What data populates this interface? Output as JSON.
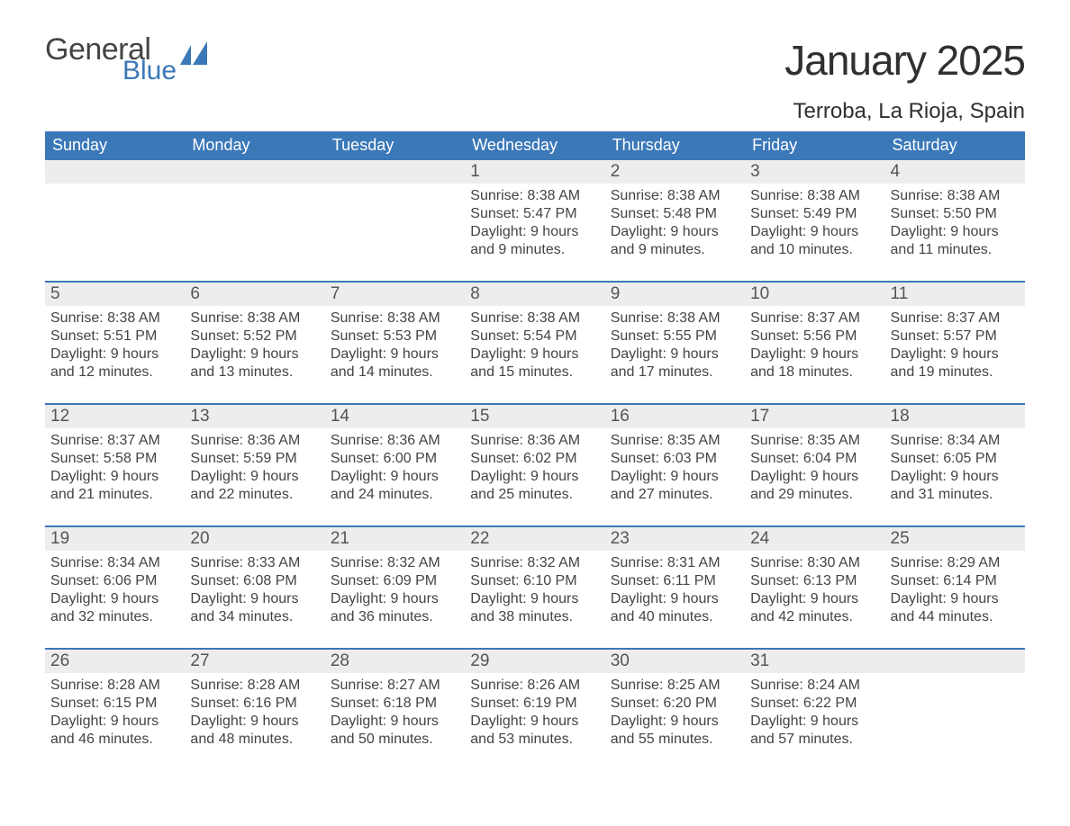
{
  "logo": {
    "word1": "General",
    "word2": "Blue"
  },
  "title": "January 2025",
  "location": "Terroba, La Rioja, Spain",
  "colors": {
    "header_bg": "#3b78b8",
    "header_text": "#ffffff",
    "daynum_bg": "#ededed",
    "accent_line": "#3b78b8",
    "text": "#444444",
    "title_text": "#303030"
  },
  "layout": {
    "columns": 7,
    "rows": 5,
    "start_weekday_index": 3,
    "fontsize_body": 16,
    "fontsize_daynum": 19,
    "fontsize_weekday": 18,
    "fontsize_title": 46,
    "fontsize_location": 24
  },
  "weekdays": [
    "Sunday",
    "Monday",
    "Tuesday",
    "Wednesday",
    "Thursday",
    "Friday",
    "Saturday"
  ],
  "days": [
    {
      "n": 1,
      "sunrise": "8:38 AM",
      "sunset": "5:47 PM",
      "daylight": "9 hours and 9 minutes."
    },
    {
      "n": 2,
      "sunrise": "8:38 AM",
      "sunset": "5:48 PM",
      "daylight": "9 hours and 9 minutes."
    },
    {
      "n": 3,
      "sunrise": "8:38 AM",
      "sunset": "5:49 PM",
      "daylight": "9 hours and 10 minutes."
    },
    {
      "n": 4,
      "sunrise": "8:38 AM",
      "sunset": "5:50 PM",
      "daylight": "9 hours and 11 minutes."
    },
    {
      "n": 5,
      "sunrise": "8:38 AM",
      "sunset": "5:51 PM",
      "daylight": "9 hours and 12 minutes."
    },
    {
      "n": 6,
      "sunrise": "8:38 AM",
      "sunset": "5:52 PM",
      "daylight": "9 hours and 13 minutes."
    },
    {
      "n": 7,
      "sunrise": "8:38 AM",
      "sunset": "5:53 PM",
      "daylight": "9 hours and 14 minutes."
    },
    {
      "n": 8,
      "sunrise": "8:38 AM",
      "sunset": "5:54 PM",
      "daylight": "9 hours and 15 minutes."
    },
    {
      "n": 9,
      "sunrise": "8:38 AM",
      "sunset": "5:55 PM",
      "daylight": "9 hours and 17 minutes."
    },
    {
      "n": 10,
      "sunrise": "8:37 AM",
      "sunset": "5:56 PM",
      "daylight": "9 hours and 18 minutes."
    },
    {
      "n": 11,
      "sunrise": "8:37 AM",
      "sunset": "5:57 PM",
      "daylight": "9 hours and 19 minutes."
    },
    {
      "n": 12,
      "sunrise": "8:37 AM",
      "sunset": "5:58 PM",
      "daylight": "9 hours and 21 minutes."
    },
    {
      "n": 13,
      "sunrise": "8:36 AM",
      "sunset": "5:59 PM",
      "daylight": "9 hours and 22 minutes."
    },
    {
      "n": 14,
      "sunrise": "8:36 AM",
      "sunset": "6:00 PM",
      "daylight": "9 hours and 24 minutes."
    },
    {
      "n": 15,
      "sunrise": "8:36 AM",
      "sunset": "6:02 PM",
      "daylight": "9 hours and 25 minutes."
    },
    {
      "n": 16,
      "sunrise": "8:35 AM",
      "sunset": "6:03 PM",
      "daylight": "9 hours and 27 minutes."
    },
    {
      "n": 17,
      "sunrise": "8:35 AM",
      "sunset": "6:04 PM",
      "daylight": "9 hours and 29 minutes."
    },
    {
      "n": 18,
      "sunrise": "8:34 AM",
      "sunset": "6:05 PM",
      "daylight": "9 hours and 31 minutes."
    },
    {
      "n": 19,
      "sunrise": "8:34 AM",
      "sunset": "6:06 PM",
      "daylight": "9 hours and 32 minutes."
    },
    {
      "n": 20,
      "sunrise": "8:33 AM",
      "sunset": "6:08 PM",
      "daylight": "9 hours and 34 minutes."
    },
    {
      "n": 21,
      "sunrise": "8:32 AM",
      "sunset": "6:09 PM",
      "daylight": "9 hours and 36 minutes."
    },
    {
      "n": 22,
      "sunrise": "8:32 AM",
      "sunset": "6:10 PM",
      "daylight": "9 hours and 38 minutes."
    },
    {
      "n": 23,
      "sunrise": "8:31 AM",
      "sunset": "6:11 PM",
      "daylight": "9 hours and 40 minutes."
    },
    {
      "n": 24,
      "sunrise": "8:30 AM",
      "sunset": "6:13 PM",
      "daylight": "9 hours and 42 minutes."
    },
    {
      "n": 25,
      "sunrise": "8:29 AM",
      "sunset": "6:14 PM",
      "daylight": "9 hours and 44 minutes."
    },
    {
      "n": 26,
      "sunrise": "8:28 AM",
      "sunset": "6:15 PM",
      "daylight": "9 hours and 46 minutes."
    },
    {
      "n": 27,
      "sunrise": "8:28 AM",
      "sunset": "6:16 PM",
      "daylight": "9 hours and 48 minutes."
    },
    {
      "n": 28,
      "sunrise": "8:27 AM",
      "sunset": "6:18 PM",
      "daylight": "9 hours and 50 minutes."
    },
    {
      "n": 29,
      "sunrise": "8:26 AM",
      "sunset": "6:19 PM",
      "daylight": "9 hours and 53 minutes."
    },
    {
      "n": 30,
      "sunrise": "8:25 AM",
      "sunset": "6:20 PM",
      "daylight": "9 hours and 55 minutes."
    },
    {
      "n": 31,
      "sunrise": "8:24 AM",
      "sunset": "6:22 PM",
      "daylight": "9 hours and 57 minutes."
    }
  ],
  "labels": {
    "sunrise": "Sunrise:",
    "sunset": "Sunset:",
    "daylight": "Daylight:"
  }
}
